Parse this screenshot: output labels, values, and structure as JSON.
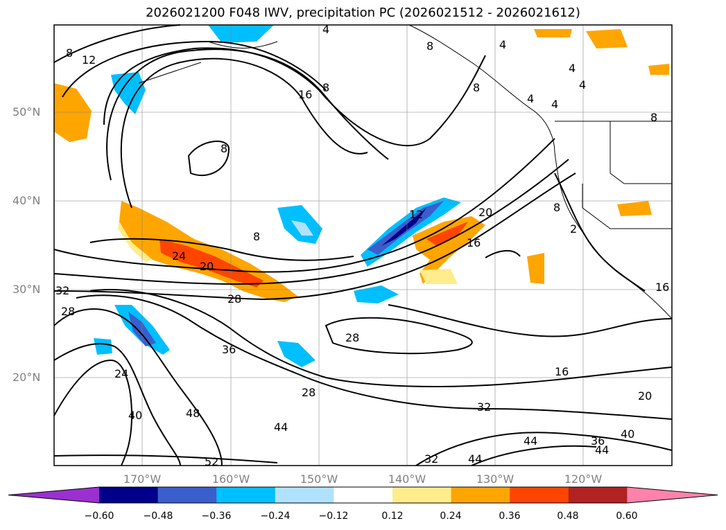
{
  "title": "2026021200 F048 IWV, precipitation PC (2026021512 - 2026021612)",
  "lat_labels": [
    "50°N",
    "40°N",
    "30°N",
    "20°N"
  ],
  "lon_labels": [
    "170°W",
    "160°W",
    "150°W",
    "140°W",
    "130°W",
    "120°W"
  ],
  "colorbar": {
    "ticks": [
      "−0.60",
      "−0.48",
      "−0.36",
      "−0.24",
      "−0.12",
      "0.12",
      "0.24",
      "0.36",
      "0.48",
      "0.60"
    ],
    "colors": [
      "#9b30d0",
      "#00008b",
      "#3a5fcd",
      "#00bfff",
      "#b0e2ff",
      "#ffffff",
      "#ffec8b",
      "#ffa500",
      "#ff4500",
      "#b22222",
      "#ff82ab"
    ]
  },
  "contour_labels": [
    "4",
    "4",
    "4",
    "4",
    "4",
    "4",
    "8",
    "8",
    "8",
    "8",
    "8",
    "8",
    "8",
    "8",
    "12",
    "12",
    "16",
    "16",
    "16",
    "16",
    "20",
    "20",
    "20",
    "24",
    "24",
    "28",
    "28",
    "28",
    "28",
    "32",
    "32",
    "32",
    "36",
    "36",
    "40",
    "40",
    "44",
    "44",
    "44",
    "44",
    "48",
    "52",
    "2"
  ],
  "colors": {
    "precip_positive": "#ffa500",
    "precip_negative": "#00bfff",
    "contour": "#000000",
    "grid": "#808080"
  }
}
